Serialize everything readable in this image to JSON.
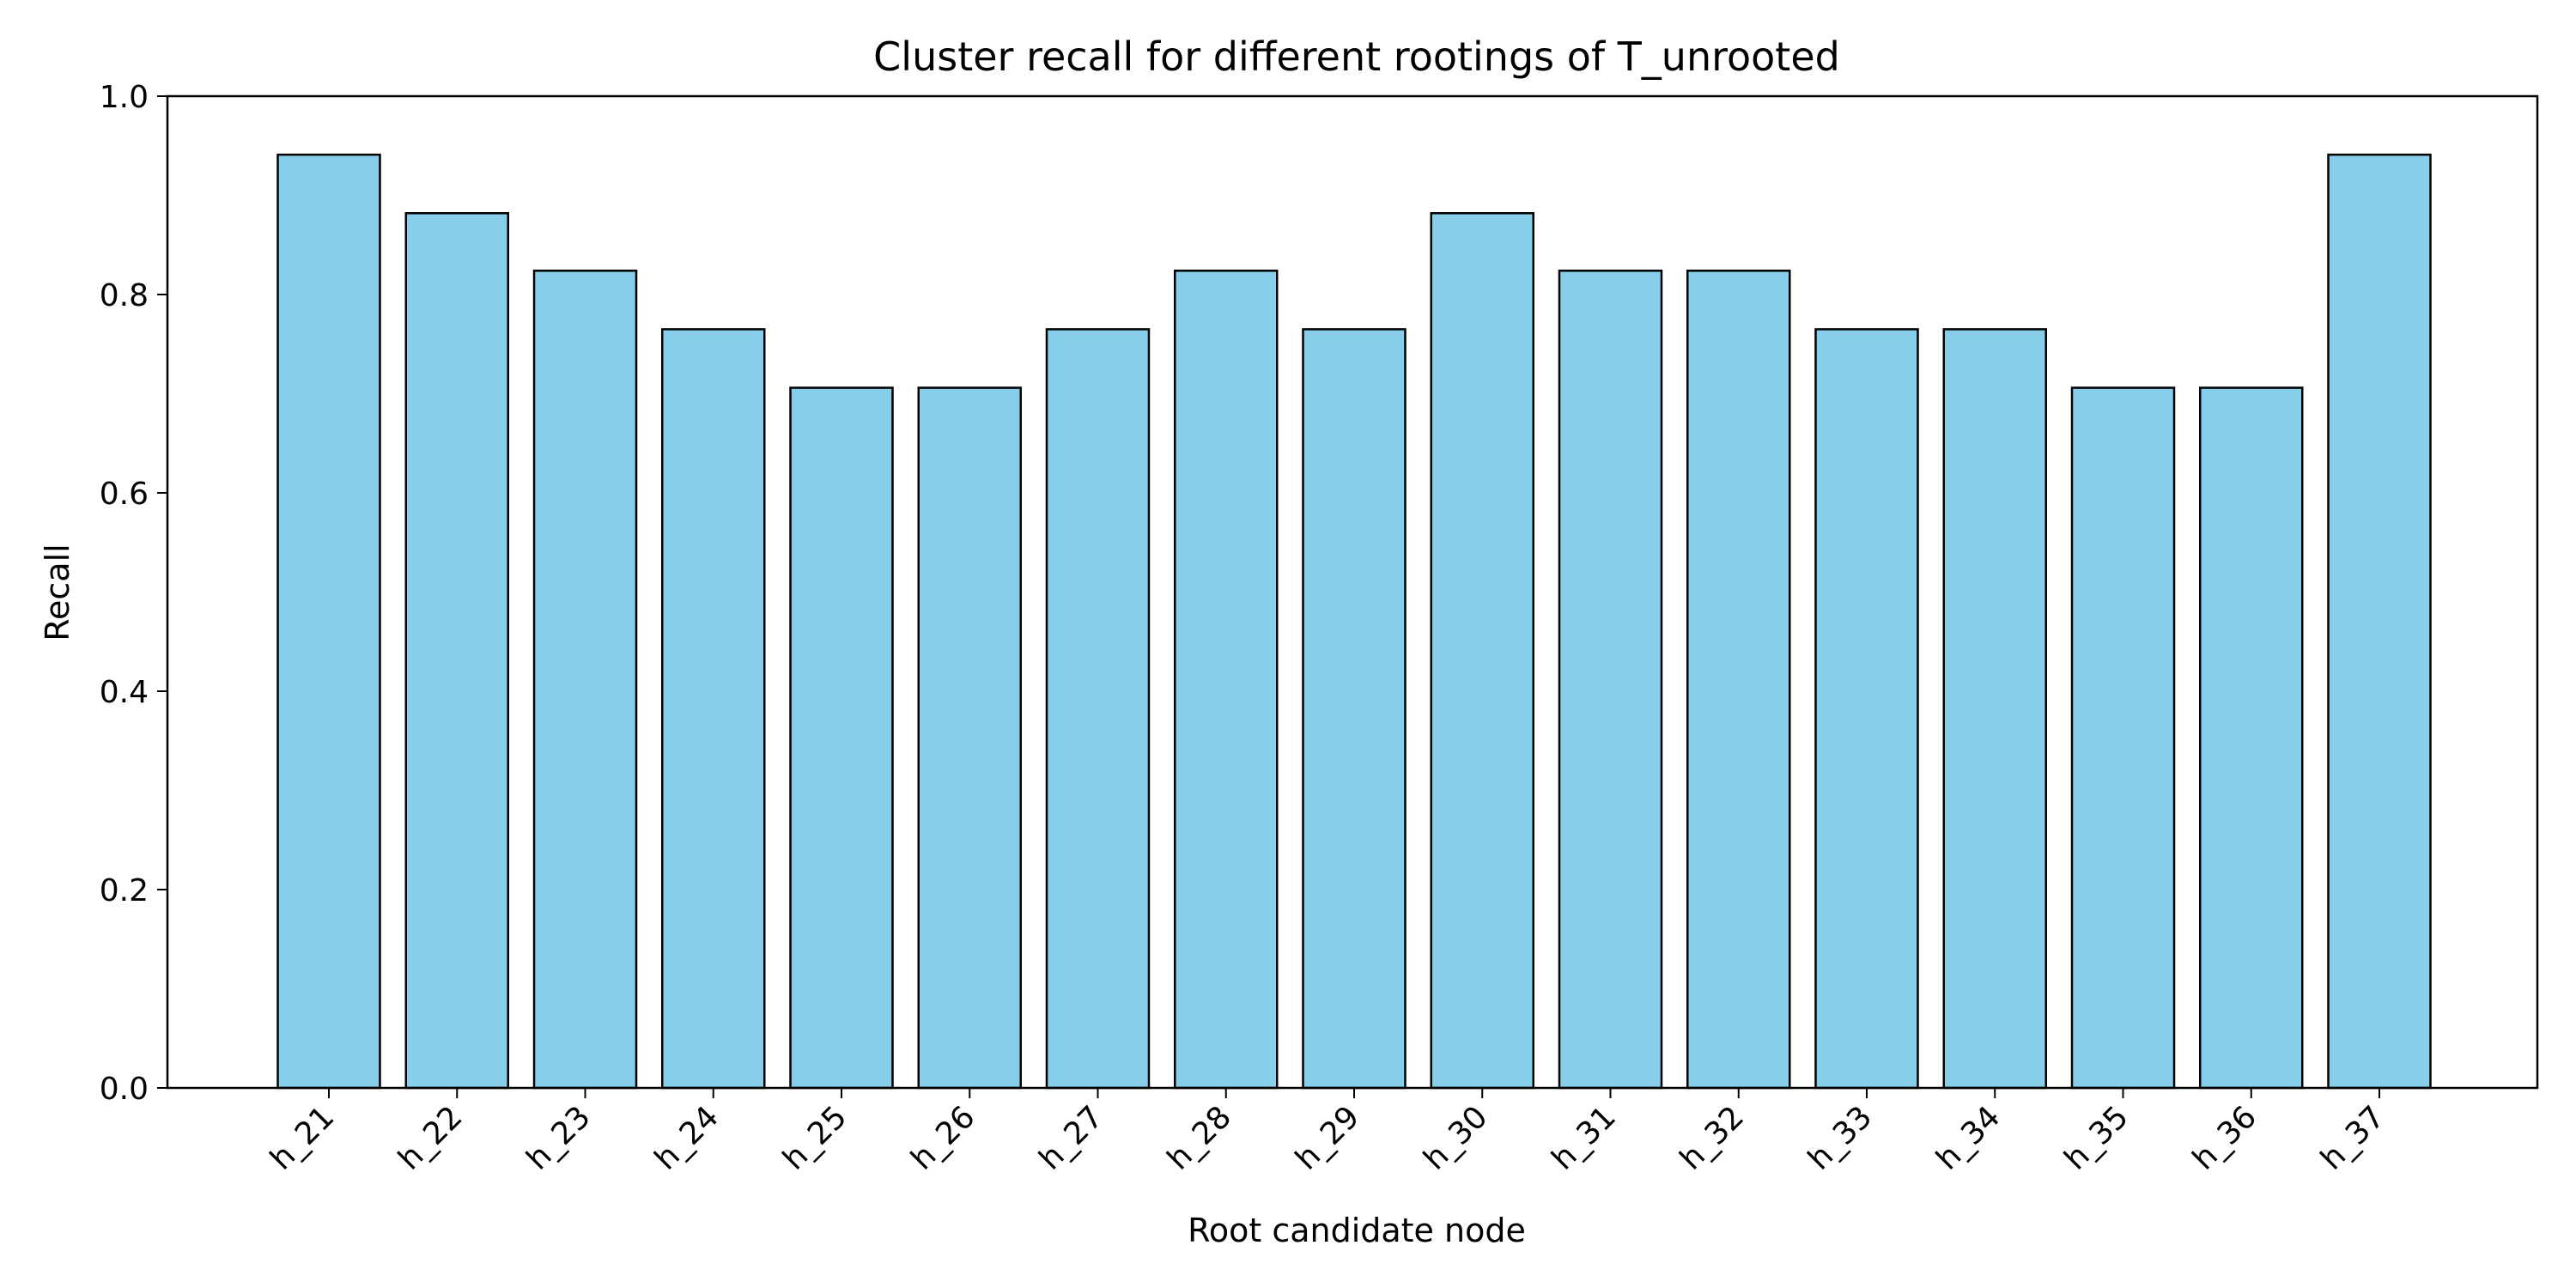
{
  "chart_data": {
    "type": "bar",
    "title": "Cluster recall for different rootings of T_unrooted",
    "xlabel": "Root candidate node",
    "ylabel": "Recall",
    "categories": [
      "h_21",
      "h_22",
      "h_23",
      "h_24",
      "h_25",
      "h_26",
      "h_27",
      "h_28",
      "h_29",
      "h_30",
      "h_31",
      "h_32",
      "h_33",
      "h_34",
      "h_35",
      "h_36",
      "h_37"
    ],
    "values": [
      0.941,
      0.882,
      0.824,
      0.765,
      0.706,
      0.706,
      0.765,
      0.824,
      0.765,
      0.882,
      0.824,
      0.824,
      0.765,
      0.765,
      0.706,
      0.706,
      0.941
    ],
    "ylim": [
      0,
      1.0
    ],
    "yticks": [
      "0.0",
      "0.2",
      "0.4",
      "0.6",
      "0.8",
      "1.0"
    ],
    "grid": false,
    "legend": "none",
    "colors": {
      "bar_fill": "#87CEEB",
      "bar_edge": "#000000"
    }
  }
}
